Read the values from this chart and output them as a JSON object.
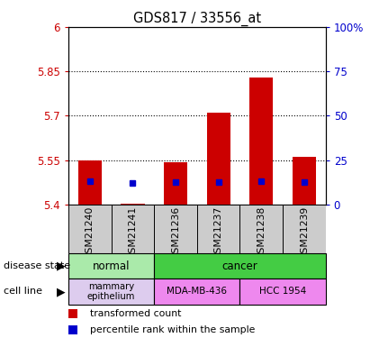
{
  "title": "GDS817 / 33556_at",
  "samples": [
    "GSM21240",
    "GSM21241",
    "GSM21236",
    "GSM21237",
    "GSM21238",
    "GSM21239"
  ],
  "bar_bottoms": [
    5.4,
    5.4,
    5.4,
    5.4,
    5.4,
    5.4
  ],
  "bar_tops": [
    5.548,
    5.402,
    5.542,
    5.71,
    5.828,
    5.562
  ],
  "percentile_values": [
    5.478,
    5.473,
    5.477,
    5.477,
    5.478,
    5.477
  ],
  "ylim": [
    5.4,
    6.0
  ],
  "yticks": [
    5.4,
    5.55,
    5.7,
    5.85,
    6.0
  ],
  "ytick_labels": [
    "5.4",
    "5.55",
    "5.7",
    "5.85",
    "6"
  ],
  "y2ticks": [
    0,
    25,
    50,
    75,
    100
  ],
  "y2tick_labels": [
    "0",
    "25",
    "50",
    "75",
    "100%"
  ],
  "grid_lines": [
    5.55,
    5.7,
    5.85
  ],
  "bar_color": "#cc0000",
  "percentile_color": "#0000cc",
  "normal_color": "#aaeaaa",
  "cancer_color": "#44cc44",
  "mammary_color": "#ddccee",
  "mda_color": "#ee88ee",
  "hcc_color": "#ee88ee",
  "tick_color_left": "#cc0000",
  "tick_color_right": "#0000cc",
  "legend_labels": [
    "transformed count",
    "percentile rank within the sample"
  ]
}
